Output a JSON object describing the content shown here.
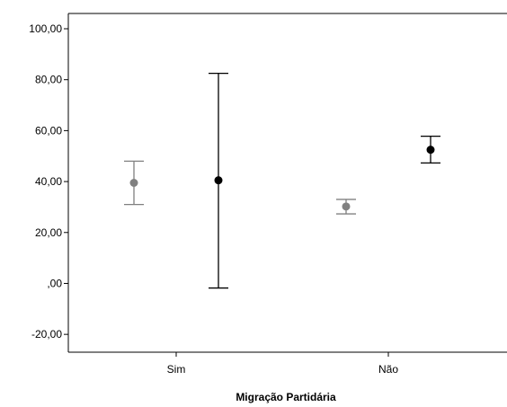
{
  "chart_data": {
    "type": "errorbar",
    "title": "",
    "xlabel": "Migração Partidária",
    "ylabel": "",
    "categories": [
      "Sim",
      "Não"
    ],
    "ylim": [
      -27,
      106
    ],
    "yticks": [
      -20,
      0,
      20,
      40,
      60,
      80,
      100
    ],
    "ytick_labels": [
      "-20,00",
      ",00",
      "20,00",
      "40,00",
      "60,00",
      "80,00",
      "100,00"
    ],
    "grid": false,
    "legend": "none",
    "series": [
      {
        "color": "#808080",
        "points": [
          {
            "category": "Sim",
            "mean": 39.5,
            "lower": 31.0,
            "upper": 48.0
          },
          {
            "category": "Não",
            "mean": 30.2,
            "lower": 27.3,
            "upper": 33.0
          }
        ]
      },
      {
        "color": "#000000",
        "points": [
          {
            "category": "Sim",
            "mean": 40.5,
            "lower": -1.8,
            "upper": 82.5
          },
          {
            "category": "Não",
            "mean": 52.5,
            "lower": 47.3,
            "upper": 57.8
          }
        ]
      }
    ]
  }
}
